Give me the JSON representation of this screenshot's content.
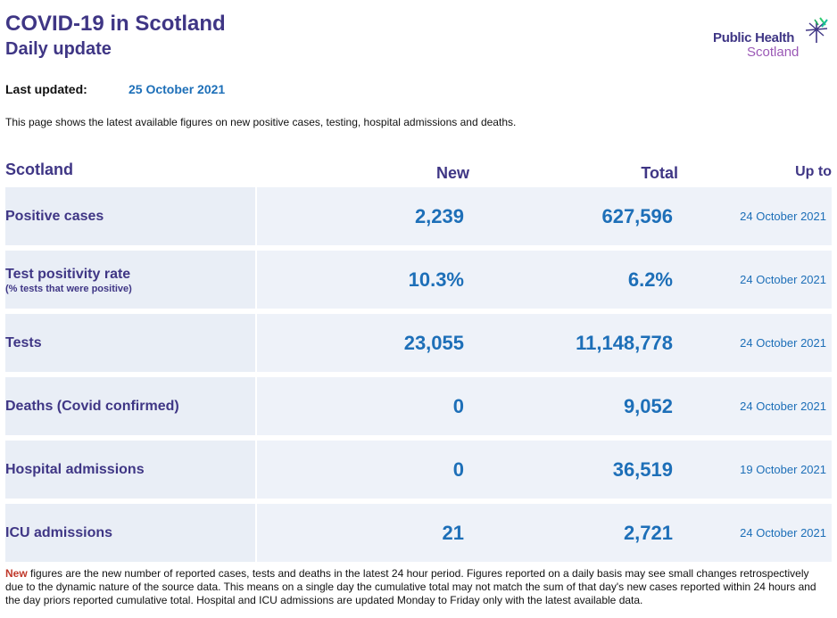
{
  "header": {
    "title": "COVID-19 in Scotland",
    "subtitle": "Daily update"
  },
  "logo": {
    "line1": "Public Health",
    "line2": "Scotland"
  },
  "last_updated": {
    "label": "Last updated:",
    "value": "25 October 2021"
  },
  "intro": "This page shows the latest available figures on new positive cases, testing, hospital admissions and deaths.",
  "table": {
    "columns": {
      "region": "Scotland",
      "new": "New",
      "total": "Total",
      "up_to": "Up to"
    },
    "rows": [
      {
        "label": "Positive cases",
        "sublabel": "",
        "new": "2,239",
        "total": "627,596",
        "date": "24 October 2021"
      },
      {
        "label": "Test positivity rate",
        "sublabel": "(% tests that were positive)",
        "new": "10.3%",
        "total": "6.2%",
        "date": "24 October 2021"
      },
      {
        "label": "Tests",
        "sublabel": "",
        "new": "23,055",
        "total": "11,148,778",
        "date": "24 October 2021"
      },
      {
        "label": "Deaths (Covid confirmed)",
        "sublabel": "",
        "new": "0",
        "total": "9,052",
        "date": "24 October 2021"
      },
      {
        "label": "Hospital admissions",
        "sublabel": "",
        "new": "0",
        "total": "36,519",
        "date": "19 October 2021"
      },
      {
        "label": "ICU admissions",
        "sublabel": "",
        "new": "21",
        "total": "2,721",
        "date": "24 October 2021"
      }
    ]
  },
  "footnote": {
    "lead": "New",
    "text": " figures are the new number of reported cases, tests and deaths in the latest 24 hour period. Figures reported on a daily basis may see small changes retrospectively due to the dynamic nature of the source data. This means on a single day the cumulative total may not match the sum of that day's new cases reported within 24 hours and the day priors reported cumulative total. Hospital and ICU admissions are updated Monday to Friday only with the latest available data."
  },
  "colors": {
    "heading": "#3f3685",
    "value": "#1d6fb8",
    "accent_red": "#c0392b",
    "row_label_bg": "#e9eef6",
    "row_data_bg": "#eef2f9"
  }
}
